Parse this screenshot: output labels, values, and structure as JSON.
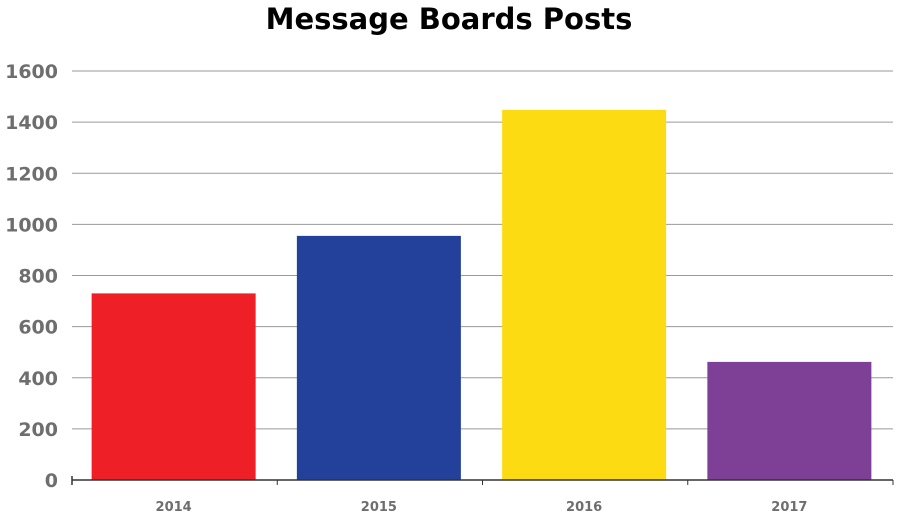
{
  "chart_data": {
    "type": "bar",
    "title": "Message Boards Posts",
    "xlabel": "",
    "ylabel": "",
    "categories": [
      "2014",
      "2015",
      "2016",
      "2017"
    ],
    "values": [
      730,
      955,
      1448,
      462
    ],
    "colors": [
      "#ee1f26",
      "#23419a",
      "#fddb13",
      "#7e3f97"
    ],
    "ylim": [
      0,
      1600
    ],
    "yticks": [
      0,
      200,
      400,
      600,
      800,
      1000,
      1200,
      1400,
      1600
    ],
    "grid": true,
    "legend": "none"
  }
}
